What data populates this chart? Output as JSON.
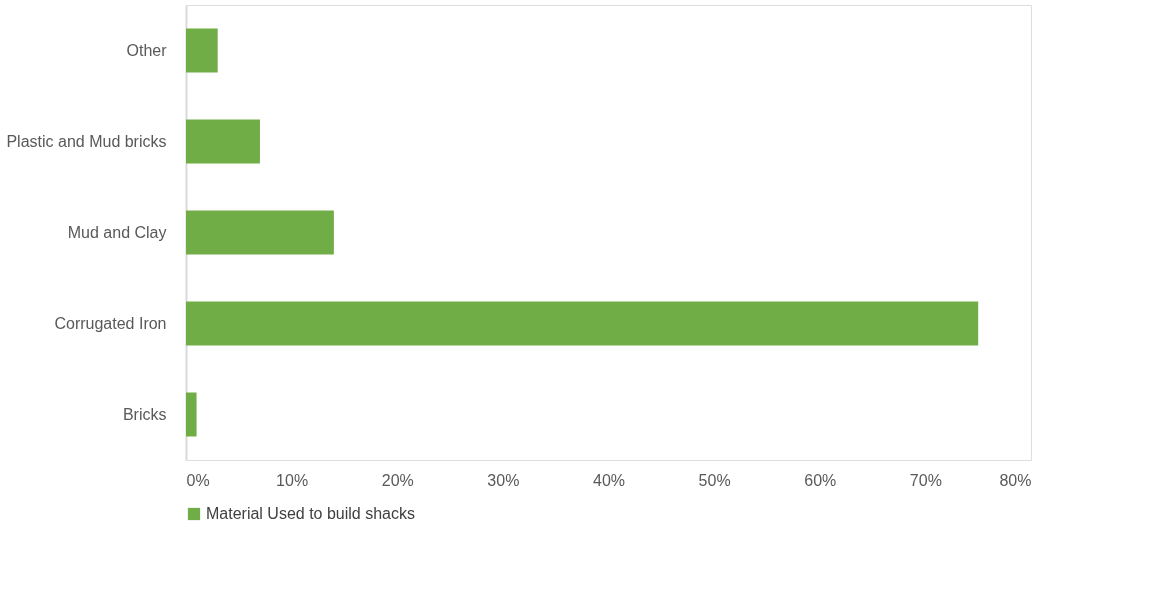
{
  "chart_data": {
    "type": "bar",
    "orientation": "horizontal",
    "categories": [
      "Other",
      "Plastic and Mud bricks",
      "Mud and Clay",
      "Corrugated Iron",
      "Bricks"
    ],
    "series": [
      {
        "name": "Material Used to build shacks",
        "color": "#70ad47",
        "values": [
          3,
          7,
          14,
          75,
          1
        ]
      }
    ],
    "xlim": [
      0,
      80
    ],
    "xticks": [
      {
        "value": 0,
        "label": "0%"
      },
      {
        "value": 10,
        "label": "10%"
      },
      {
        "value": 20,
        "label": "20%"
      },
      {
        "value": 30,
        "label": "30%"
      },
      {
        "value": 40,
        "label": "40%"
      },
      {
        "value": 50,
        "label": "50%"
      },
      {
        "value": 60,
        "label": "60%"
      },
      {
        "value": 70,
        "label": "70%"
      },
      {
        "value": 80,
        "label": "80%"
      }
    ],
    "grid": false,
    "legend": "bottom"
  }
}
